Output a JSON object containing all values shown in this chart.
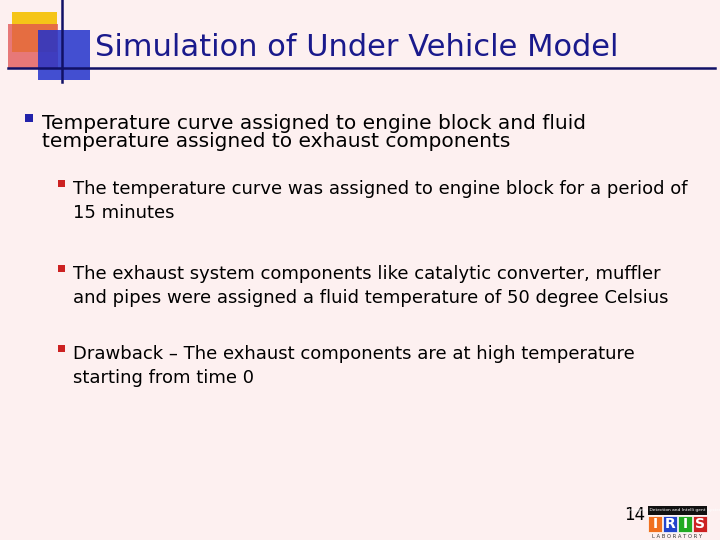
{
  "title": "Simulation of Under Vehicle Model",
  "title_color": "#1a1a8c",
  "title_fontsize": 22,
  "background_color": "#fdf0f0",
  "bullet_main_line1": "Temperature curve assigned to engine block and fluid",
  "bullet_main_line2": "temperature assigned to exhaust components",
  "bullet_main_color": "#000000",
  "bullet_main_fontsize": 14.5,
  "bullet_main_marker_color": "#2222aa",
  "sub_bullets": [
    "The temperature curve was assigned to engine block for a period of\n15 minutes",
    "The exhaust system components like catalytic converter, muffler\nand pipes were assigned a fluid temperature of 50 degree Celsius",
    "Drawback – The exhaust components are at high temperature\nstarting from time 0"
  ],
  "sub_bullet_fontsize": 13,
  "sub_bullet_color": "#000000",
  "sub_bullet_marker_color": "#cc2222",
  "page_number": "14",
  "header_logo_yellow": "#f5c518",
  "header_logo_red": "#e05050",
  "header_logo_blue": "#2233cc",
  "header_line_color": "#111166",
  "iris_orange": "#f07020",
  "iris_blue": "#2244cc",
  "iris_green": "#22aa22",
  "iris_red": "#cc2222"
}
